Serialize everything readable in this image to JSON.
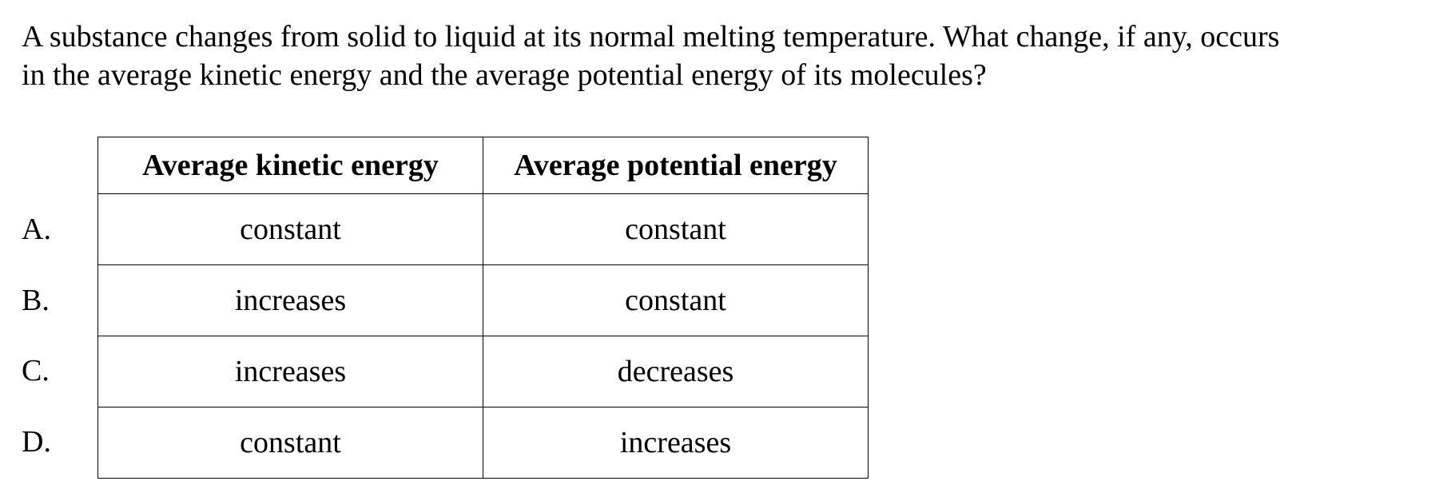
{
  "question": {
    "line1": "A substance changes from solid to liquid at its normal melting temperature.  What change, if any, occurs",
    "line2": "in the average kinetic energy and the average potential energy of its molecules?"
  },
  "table": {
    "headers": {
      "kinetic": "Average kinetic energy",
      "potential": "Average potential energy"
    },
    "rows": [
      {
        "letter": "A.",
        "kinetic": "constant",
        "potential": "constant"
      },
      {
        "letter": "B.",
        "kinetic": "increases",
        "potential": "constant"
      },
      {
        "letter": "C.",
        "kinetic": "increases",
        "potential": "decreases"
      },
      {
        "letter": "D.",
        "kinetic": "constant",
        "potential": "increases"
      }
    ]
  }
}
